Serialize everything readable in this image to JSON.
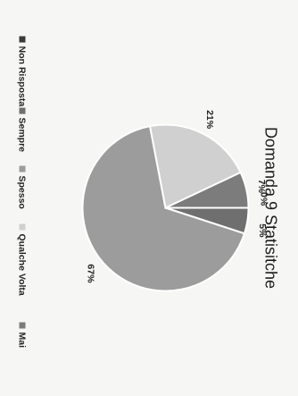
{
  "chart_data": {
    "type": "pie",
    "title": "Domanda 9 Statisitche",
    "categories": [
      "Non Risposta",
      "Sempre",
      "Spesso",
      "Qualche Volta",
      "Mai"
    ],
    "values": [
      0,
      5,
      67,
      21,
      7
    ],
    "data_labels": [
      "0%",
      "5%",
      "67%",
      "21%",
      "7%"
    ],
    "colors": [
      "#3a3a3a",
      "#6f6f6f",
      "#9c9c9c",
      "#d0d0d0",
      "#7c7c7c"
    ],
    "legend": {
      "position": "bottom",
      "entries": [
        "Non Risposta",
        "Sempre",
        "Spesso",
        "Qualche Volta",
        "Mai"
      ]
    }
  }
}
